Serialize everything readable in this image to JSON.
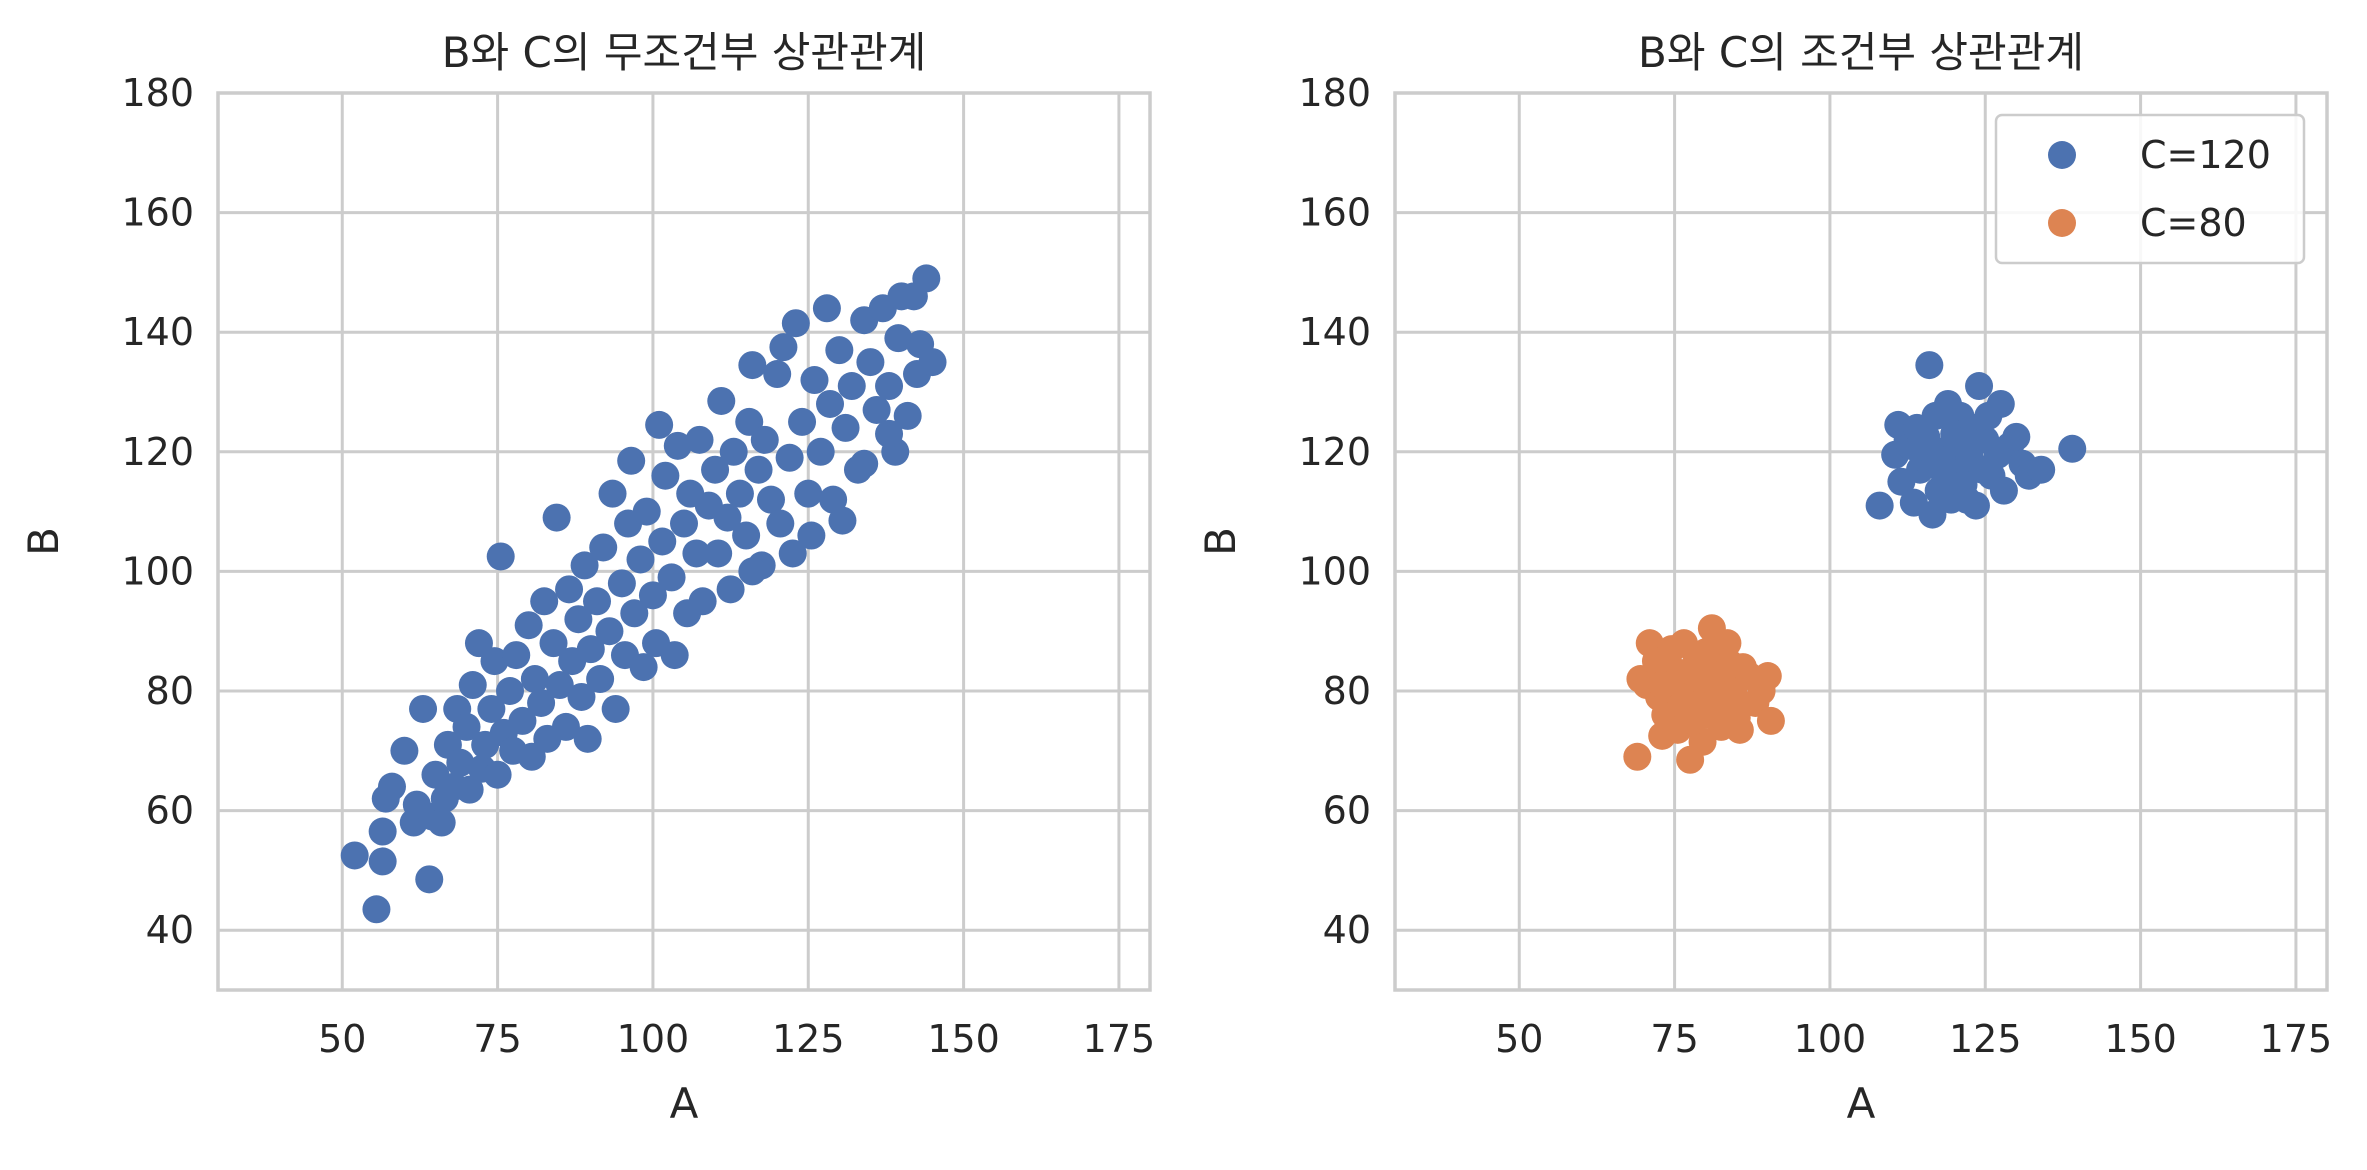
{
  "chart_data": [
    {
      "type": "scatter",
      "title": "B와 C의 무조건부 상관관계",
      "xlabel": "A",
      "ylabel": "B",
      "xlim": [
        30,
        180
      ],
      "ylim": [
        30,
        180
      ],
      "xticks": [
        50,
        75,
        100,
        125,
        150,
        175
      ],
      "yticks": [
        40,
        60,
        80,
        100,
        120,
        140,
        160,
        180
      ],
      "grid": true,
      "legend": null,
      "series": [
        {
          "color": "#4c72b0",
          "points": [
            [
              52,
              52.5
            ],
            [
              55.5,
              43.5
            ],
            [
              56.5,
              51.5
            ],
            [
              56.5,
              56.5
            ],
            [
              57,
              62
            ],
            [
              58,
              64
            ],
            [
              60,
              70
            ],
            [
              61.5,
              58
            ],
            [
              62,
              61
            ],
            [
              63,
              77
            ],
            [
              64,
              48.5
            ],
            [
              64.5,
              59
            ],
            [
              65,
              66
            ],
            [
              66,
              58
            ],
            [
              66.5,
              62
            ],
            [
              67,
              71
            ],
            [
              68,
              64
            ],
            [
              68.5,
              77
            ],
            [
              69,
              68
            ],
            [
              70,
              74
            ],
            [
              70.5,
              63.5
            ],
            [
              71,
              81
            ],
            [
              72,
              88
            ],
            [
              72.5,
              67
            ],
            [
              73,
              71
            ],
            [
              74,
              77
            ],
            [
              74.5,
              85
            ],
            [
              75,
              66
            ],
            [
              75.5,
              102.5
            ],
            [
              76,
              73
            ],
            [
              77,
              80
            ],
            [
              77.5,
              70
            ],
            [
              78,
              86
            ],
            [
              79,
              75
            ],
            [
              80,
              91
            ],
            [
              80.5,
              69
            ],
            [
              81,
              82
            ],
            [
              82,
              78
            ],
            [
              82.5,
              95
            ],
            [
              83,
              72
            ],
            [
              84,
              88
            ],
            [
              84.5,
              109
            ],
            [
              85,
              81
            ],
            [
              86,
              74
            ],
            [
              86.5,
              97
            ],
            [
              87,
              85
            ],
            [
              88,
              92
            ],
            [
              88.5,
              79
            ],
            [
              89,
              101
            ],
            [
              89.5,
              72
            ],
            [
              90,
              87
            ],
            [
              91,
              95
            ],
            [
              91.5,
              82
            ],
            [
              92,
              104
            ],
            [
              93,
              90
            ],
            [
              93.5,
              113
            ],
            [
              94,
              77
            ],
            [
              95,
              98
            ],
            [
              95.5,
              86
            ],
            [
              96,
              108
            ],
            [
              96.5,
              118.5
            ],
            [
              97,
              93
            ],
            [
              98,
              102
            ],
            [
              98.5,
              84
            ],
            [
              99,
              110
            ],
            [
              100,
              96
            ],
            [
              100.5,
              88
            ],
            [
              101,
              124.5
            ],
            [
              101.5,
              105
            ],
            [
              102,
              116
            ],
            [
              103,
              99
            ],
            [
              103.5,
              86
            ],
            [
              104,
              121
            ],
            [
              105,
              108
            ],
            [
              105.5,
              93
            ],
            [
              106,
              113
            ],
            [
              107,
              103
            ],
            [
              107.5,
              122
            ],
            [
              108,
              95
            ],
            [
              109,
              111
            ],
            [
              110,
              117
            ],
            [
              110.5,
              103
            ],
            [
              111,
              128.5
            ],
            [
              112,
              109
            ],
            [
              112.5,
              97
            ],
            [
              113,
              120
            ],
            [
              114,
              113
            ],
            [
              115,
              106
            ],
            [
              115.5,
              125
            ],
            [
              116,
              134.5
            ],
            [
              117,
              117
            ],
            [
              117.5,
              101
            ],
            [
              118,
              122
            ],
            [
              119,
              112
            ],
            [
              120,
              133
            ],
            [
              120.5,
              108
            ],
            [
              121,
              137.5
            ],
            [
              122,
              119
            ],
            [
              122.5,
              103
            ],
            [
              123,
              141.5
            ],
            [
              124,
              125
            ],
            [
              125,
              113
            ],
            [
              125.5,
              106
            ],
            [
              126,
              132
            ],
            [
              127,
              120
            ],
            [
              128,
              144
            ],
            [
              128.5,
              128
            ],
            [
              129,
              112
            ],
            [
              130,
              137
            ],
            [
              130.5,
              108.5
            ],
            [
              131,
              124
            ],
            [
              132,
              131
            ],
            [
              133,
              117
            ],
            [
              134,
              142
            ],
            [
              135,
              135
            ],
            [
              136,
              127
            ],
            [
              137,
              144
            ],
            [
              138,
              131
            ],
            [
              139,
              120
            ],
            [
              139.5,
              139
            ],
            [
              140,
              146
            ],
            [
              141,
              126
            ],
            [
              142,
              146
            ],
            [
              142.5,
              133
            ],
            [
              143,
              138
            ],
            [
              144,
              149
            ],
            [
              145,
              135
            ],
            [
              138,
              123
            ],
            [
              134,
              118
            ],
            [
              116,
              100
            ]
          ]
        }
      ]
    },
    {
      "type": "scatter",
      "title": "B와 C의 조건부 상관관계",
      "xlabel": "A",
      "ylabel": "B",
      "xlim": [
        30,
        180
      ],
      "ylim": [
        30,
        180
      ],
      "xticks": [
        50,
        75,
        100,
        125,
        150,
        175
      ],
      "yticks": [
        40,
        60,
        80,
        100,
        120,
        140,
        160,
        180
      ],
      "grid": true,
      "legend": "upper right",
      "series": [
        {
          "name": "C=120",
          "color": "#4c72b0",
          "points": [
            [
              108,
              111
            ],
            [
              110.5,
              119.5
            ],
            [
              111,
              124.5
            ],
            [
              111.5,
              115
            ],
            [
              112.5,
              122
            ],
            [
              113,
              121
            ],
            [
              113.5,
              111.5
            ],
            [
              114,
              124
            ],
            [
              114.5,
              117
            ],
            [
              115,
              119
            ],
            [
              115.5,
              122.5
            ],
            [
              116,
              134.5
            ],
            [
              116.5,
              109.5
            ],
            [
              117,
              126
            ],
            [
              117.5,
              113.5
            ],
            [
              118,
              120
            ],
            [
              118.5,
              116
            ],
            [
              119,
              128
            ],
            [
              119.5,
              112
            ],
            [
              120,
              122
            ],
            [
              120.5,
              118
            ],
            [
              121,
              126
            ],
            [
              121.5,
              114.5
            ],
            [
              122,
              112
            ],
            [
              122.5,
              119
            ],
            [
              123,
              124
            ],
            [
              123.5,
              111
            ],
            [
              124,
              131
            ],
            [
              124.5,
              117
            ],
            [
              125,
              122
            ],
            [
              125.5,
              126
            ],
            [
              126,
              116
            ],
            [
              127,
              119.5
            ],
            [
              127.5,
              128
            ],
            [
              128,
              113.5
            ],
            [
              129,
              121
            ],
            [
              130,
              122.5
            ],
            [
              131,
              118
            ],
            [
              132,
              116
            ],
            [
              134,
              117
            ],
            [
              139,
              120.5
            ],
            [
              120,
              123
            ],
            [
              118,
              118.5
            ],
            [
              122,
              122
            ],
            [
              116,
              120.5
            ]
          ]
        },
        {
          "name": "C=80",
          "color": "#dd8452",
          "points": [
            [
              69,
              69
            ],
            [
              69.5,
              82
            ],
            [
              70.5,
              81
            ],
            [
              71,
              88
            ],
            [
              72,
              85
            ],
            [
              72.5,
              79
            ],
            [
              73,
              72.5
            ],
            [
              73.5,
              76
            ],
            [
              74,
              84
            ],
            [
              74.5,
              87
            ],
            [
              75,
              80
            ],
            [
              75.5,
              73.5
            ],
            [
              76,
              83
            ],
            [
              76.5,
              88
            ],
            [
              77,
              77
            ],
            [
              77.5,
              68.5
            ],
            [
              78,
              82
            ],
            [
              78.5,
              86
            ],
            [
              79,
              79
            ],
            [
              79.5,
              71.5
            ],
            [
              80,
              84
            ],
            [
              80.5,
              76
            ],
            [
              81,
              90.5
            ],
            [
              81.5,
              80
            ],
            [
              82,
              86
            ],
            [
              82.5,
              74
            ],
            [
              83,
              82
            ],
            [
              83.5,
              88
            ],
            [
              84,
              78
            ],
            [
              84.5,
              80.5
            ],
            [
              85,
              75.5
            ],
            [
              85.5,
              73.5
            ],
            [
              86,
              84
            ],
            [
              87,
              82.5
            ],
            [
              88,
              78
            ],
            [
              89,
              80
            ],
            [
              90,
              82.5
            ],
            [
              90.5,
              75
            ],
            [
              76,
              79
            ],
            [
              79,
              82
            ],
            [
              82,
              79.5
            ],
            [
              78,
              75
            ],
            [
              84,
              84.5
            ],
            [
              73,
              81
            ],
            [
              80,
              86.5
            ]
          ]
        }
      ]
    }
  ]
}
